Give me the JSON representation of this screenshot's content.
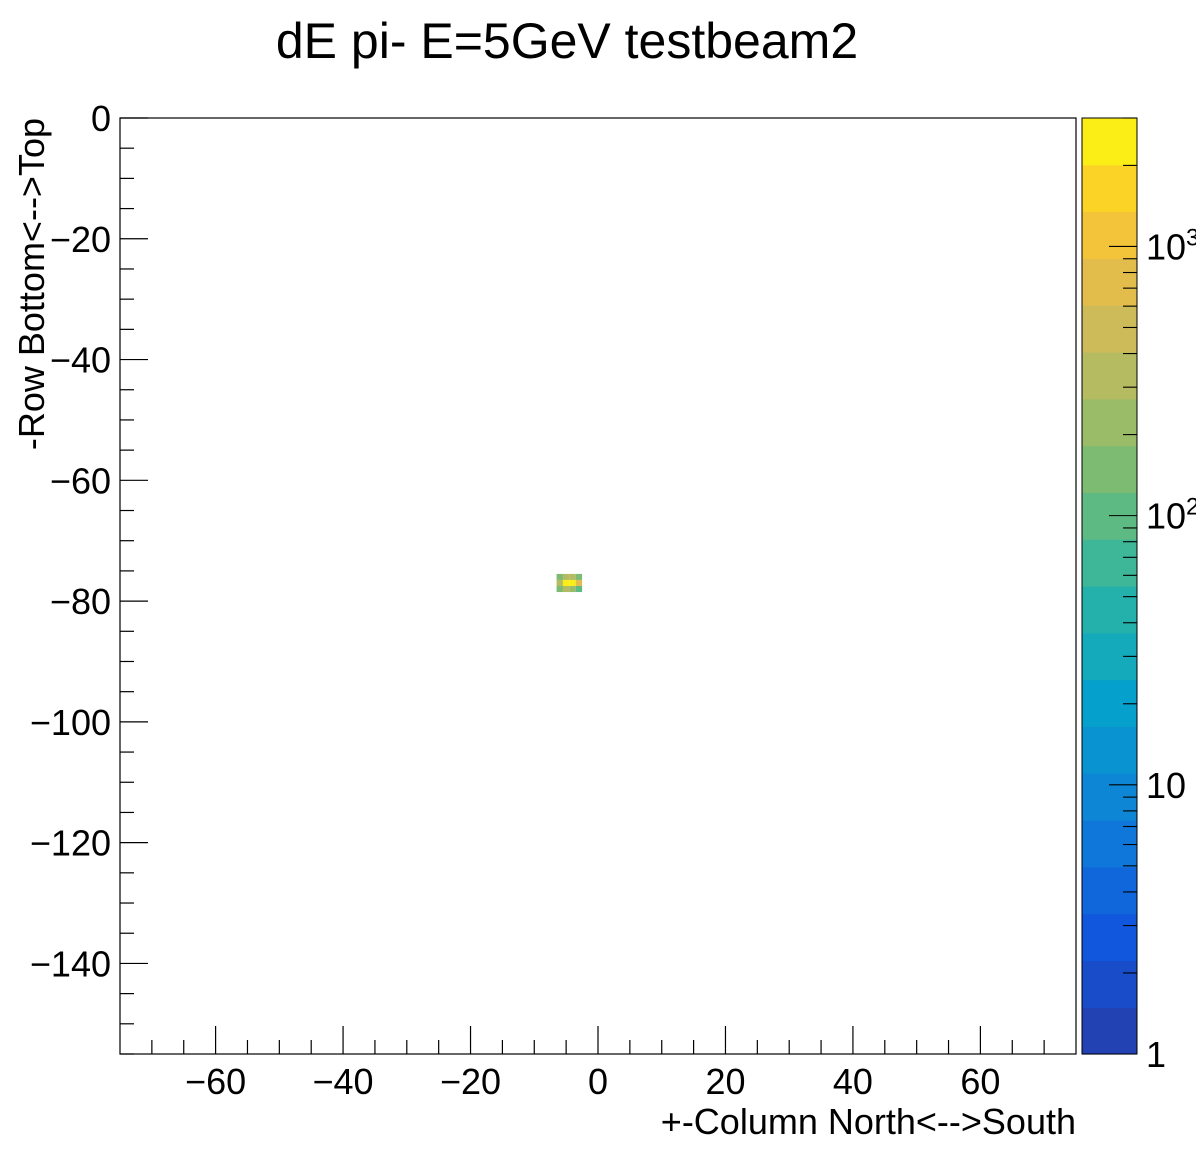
{
  "chart_data": {
    "type": "heatmap",
    "title": "dE pi- E=5GeV testbeam2",
    "xlabel": "+-Column North<-->South",
    "ylabel": "-Row Bottom<-->Top",
    "xlim": [
      -75,
      75
    ],
    "ylim": [
      -155,
      0
    ],
    "x_ticks": [
      {
        "value": -60,
        "label": "−60"
      },
      {
        "value": -40,
        "label": "−40"
      },
      {
        "value": -20,
        "label": "−20"
      },
      {
        "value": 0,
        "label": "0"
      },
      {
        "value": 20,
        "label": "20"
      },
      {
        "value": 40,
        "label": "40"
      },
      {
        "value": 60,
        "label": "60"
      }
    ],
    "y_ticks": [
      {
        "value": 0,
        "label": "0"
      },
      {
        "value": -20,
        "label": "−20"
      },
      {
        "value": -40,
        "label": "−40"
      },
      {
        "value": -60,
        "label": "−60"
      },
      {
        "value": -80,
        "label": "−80"
      },
      {
        "value": -100,
        "label": "−100"
      },
      {
        "value": -120,
        "label": "−120"
      },
      {
        "value": -140,
        "label": "−140"
      }
    ],
    "colorbar": {
      "scale": "log",
      "range": [
        1,
        3000
      ],
      "ticks": [
        {
          "value": 1,
          "label": "1"
        },
        {
          "value": 10,
          "label": "10"
        },
        {
          "value": 100,
          "label": "10",
          "exp": "2"
        },
        {
          "value": 1000,
          "label": "10",
          "exp": "3"
        }
      ]
    },
    "cells": [
      {
        "x": -6,
        "y": -78,
        "value": 150
      },
      {
        "x": -5,
        "y": -78,
        "value": 300
      },
      {
        "x": -4,
        "y": -78,
        "value": 250
      },
      {
        "x": -3,
        "y": -78,
        "value": 120
      },
      {
        "x": -6,
        "y": -77,
        "value": 400
      },
      {
        "x": -5,
        "y": -77,
        "value": 2500
      },
      {
        "x": -4,
        "y": -77,
        "value": 2800
      },
      {
        "x": -3,
        "y": -77,
        "value": 900
      },
      {
        "x": -6,
        "y": -76,
        "value": 180
      },
      {
        "x": -5,
        "y": -76,
        "value": 350
      },
      {
        "x": -4,
        "y": -76,
        "value": 300
      },
      {
        "x": -3,
        "y": -76,
        "value": 140
      }
    ]
  }
}
